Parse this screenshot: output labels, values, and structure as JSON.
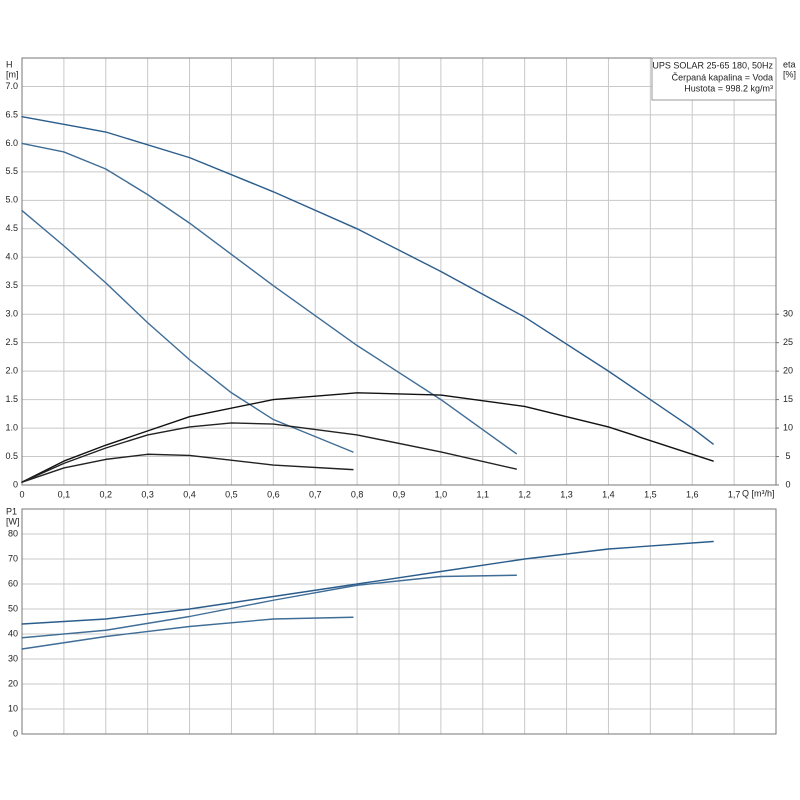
{
  "chart_data": [
    {
      "type": "line",
      "ylabel": "H",
      "yunit": "[m]",
      "y2label": "eta",
      "y2unit": "[%]",
      "xlabel": "Q [m³/h]",
      "annotations": [
        "UPS SOLAR 25-65 180, 50Hz",
        "Čerpaná kapalina = Voda",
        "Hustota = 998.2 kg/m³"
      ],
      "grid": true,
      "xlim": [
        0,
        1.8
      ],
      "xticks": [
        0,
        {
          "value": 0.1,
          "label": "0,1"
        },
        {
          "value": 0.2,
          "label": "0,2"
        },
        {
          "value": 0.3,
          "label": "0,3"
        },
        {
          "value": 0.4,
          "label": "0,4"
        },
        {
          "value": 0.5,
          "label": "0,5"
        },
        {
          "value": 0.6,
          "label": "0,6"
        },
        {
          "value": 0.7,
          "label": "0,7"
        },
        {
          "value": 0.8,
          "label": "0,8"
        },
        {
          "value": 0.9,
          "label": "0,9"
        },
        {
          "value": 1.0,
          "label": "1,0"
        },
        {
          "value": 1.1,
          "label": "1,1"
        },
        {
          "value": 1.2,
          "label": "1,2"
        },
        {
          "value": 1.3,
          "label": "1,3"
        },
        {
          "value": 1.4,
          "label": "1,4"
        },
        {
          "value": 1.5,
          "label": "1,5"
        },
        {
          "value": 1.6,
          "label": "1,6"
        },
        {
          "value": 1.7,
          "label": "1,7"
        }
      ],
      "ylim": [
        0,
        7.5
      ],
      "yticks": [
        0,
        {
          "value": 0.5,
          "label": "0.5"
        },
        {
          "value": 1,
          "label": "1.0"
        },
        {
          "value": 1.5,
          "label": "1.5"
        },
        {
          "value": 2,
          "label": "2.0"
        },
        {
          "value": 2.5,
          "label": "2.5"
        },
        {
          "value": 3,
          "label": "3.0"
        },
        {
          "value": 3.5,
          "label": "3.5"
        },
        {
          "value": 4,
          "label": "4.0"
        },
        {
          "value": 4.5,
          "label": "4.5"
        },
        {
          "value": 5,
          "label": "5.0"
        },
        {
          "value": 5.5,
          "label": "5.5"
        },
        {
          "value": 6,
          "label": "6.0"
        },
        {
          "value": 6.5,
          "label": "6.5"
        },
        {
          "value": 7,
          "label": "7.0"
        }
      ],
      "y2lim": [
        0,
        75
      ],
      "y2ticks": [
        0,
        5,
        10,
        15,
        20,
        25,
        30
      ],
      "series": [
        {
          "color": "#2b5d8c",
          "x": [
            0,
            0.2,
            0.4,
            0.6,
            0.8,
            1.0,
            1.2,
            1.4,
            1.6,
            1.65
          ],
          "values": [
            6.47,
            6.2,
            5.75,
            5.15,
            4.5,
            3.75,
            2.95,
            2.0,
            1.0,
            0.72
          ]
        },
        {
          "color": "#3f6d96",
          "x": [
            0,
            0.1,
            0.2,
            0.3,
            0.4,
            0.6,
            0.8,
            1.0,
            1.18
          ],
          "values": [
            6.0,
            5.85,
            5.55,
            5.1,
            4.6,
            3.5,
            2.45,
            1.5,
            0.55
          ]
        },
        {
          "color": "#3f6d96",
          "x": [
            0,
            0.1,
            0.2,
            0.3,
            0.4,
            0.5,
            0.6,
            0.79
          ],
          "values": [
            4.82,
            4.2,
            3.55,
            2.85,
            2.2,
            1.62,
            1.15,
            0.58
          ]
        },
        {
          "color": "#111111",
          "axis": "y2",
          "x": [
            0,
            0.1,
            0.2,
            0.4,
            0.6,
            0.8,
            1.0,
            1.2,
            1.4,
            1.65
          ],
          "values": [
            0.5,
            4.2,
            7,
            12,
            15,
            16.2,
            15.8,
            13.8,
            10.2,
            4.2
          ]
        },
        {
          "color": "#222222",
          "axis": "y2",
          "x": [
            0,
            0.1,
            0.2,
            0.3,
            0.4,
            0.5,
            0.6,
            0.8,
            1.0,
            1.18
          ],
          "values": [
            0.5,
            3.8,
            6.5,
            8.8,
            10.2,
            10.9,
            10.7,
            8.8,
            5.8,
            2.8
          ]
        },
        {
          "color": "#222222",
          "axis": "y2",
          "x": [
            0,
            0.1,
            0.2,
            0.3,
            0.4,
            0.6,
            0.79
          ],
          "values": [
            0.5,
            3.0,
            4.5,
            5.4,
            5.2,
            3.5,
            2.7
          ]
        }
      ]
    },
    {
      "type": "line",
      "ylabel": "P1",
      "yunit": "[W]",
      "grid": true,
      "xlim": [
        0,
        1.8
      ],
      "xticks": [
        0,
        0.1,
        0.2,
        0.3,
        0.4,
        0.5,
        0.6,
        0.7,
        0.8,
        0.9,
        1.0,
        1.1,
        1.2,
        1.3,
        1.4,
        1.5,
        1.6,
        1.7
      ],
      "ylim": [
        0,
        90
      ],
      "yticks": [
        0,
        10,
        20,
        30,
        40,
        50,
        60,
        70,
        80
      ],
      "series": [
        {
          "color": "#2b5d8c",
          "x": [
            0,
            0.2,
            0.4,
            0.6,
            0.8,
            1.0,
            1.2,
            1.4,
            1.65
          ],
          "values": [
            44,
            46,
            50,
            55,
            60,
            65,
            70,
            74,
            77
          ]
        },
        {
          "color": "#3f6d96",
          "x": [
            0,
            0.2,
            0.4,
            0.6,
            0.8,
            1.0,
            1.18
          ],
          "values": [
            38.5,
            41.5,
            47,
            53.5,
            59.5,
            63,
            63.5
          ]
        },
        {
          "color": "#3f6d96",
          "x": [
            0,
            0.2,
            0.4,
            0.6,
            0.79
          ],
          "values": [
            34,
            39,
            43,
            46,
            46.7
          ]
        }
      ]
    }
  ]
}
